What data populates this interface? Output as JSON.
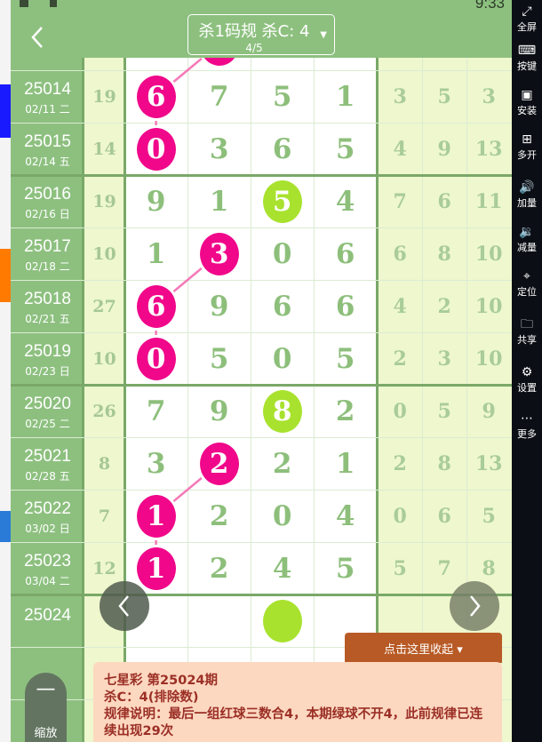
{
  "status": {
    "time": "9:33"
  },
  "header": {
    "title": "杀1码规 杀C: 4",
    "subtitle": "4/5",
    "back_icon": "chevron-left-icon",
    "dropdown_icon": "caret-down-icon"
  },
  "colors": {
    "header": "#8dc07f",
    "pink_ball": "#f0078a",
    "green_ball": "#a8e22e",
    "link_line": "#f57ab8",
    "collapse": "#b85a25",
    "panel": "#fdd8c0",
    "panel_text": "#9b2f26"
  },
  "partial_row": {
    "ball_col": 1,
    "ball_color": "pink"
  },
  "rows": [
    {
      "issue": "25014",
      "date": "02/11 二",
      "sum": "19",
      "nums": [
        "6",
        "7",
        "5",
        "1"
      ],
      "ball_col": 0,
      "ball_color": "pink",
      "tail": [
        "3",
        "5",
        "3"
      ]
    },
    {
      "issue": "25015",
      "date": "02/14 五",
      "sum": "14",
      "nums": [
        "0",
        "3",
        "6",
        "5"
      ],
      "ball_col": 0,
      "ball_color": "pink",
      "tail": [
        "4",
        "9",
        "13"
      ]
    },
    {
      "issue": "25016",
      "date": "02/16 日",
      "sum": "19",
      "nums": [
        "9",
        "1",
        "5",
        "4"
      ],
      "ball_col": 2,
      "ball_color": "green",
      "tail": [
        "7",
        "6",
        "11"
      ]
    },
    {
      "issue": "25017",
      "date": "02/18 二",
      "sum": "10",
      "nums": [
        "1",
        "3",
        "0",
        "6"
      ],
      "ball_col": 1,
      "ball_color": "pink",
      "tail": [
        "6",
        "8",
        "10"
      ]
    },
    {
      "issue": "25018",
      "date": "02/21 五",
      "sum": "27",
      "nums": [
        "6",
        "9",
        "6",
        "6"
      ],
      "ball_col": 0,
      "ball_color": "pink",
      "tail": [
        "4",
        "2",
        "10"
      ]
    },
    {
      "issue": "25019",
      "date": "02/23 日",
      "sum": "10",
      "nums": [
        "0",
        "5",
        "0",
        "5"
      ],
      "ball_col": 0,
      "ball_color": "pink",
      "tail": [
        "2",
        "3",
        "10"
      ]
    },
    {
      "issue": "25020",
      "date": "02/25 二",
      "sum": "26",
      "nums": [
        "7",
        "9",
        "8",
        "2"
      ],
      "ball_col": 2,
      "ball_color": "green",
      "tail": [
        "0",
        "5",
        "9"
      ]
    },
    {
      "issue": "25021",
      "date": "02/28 五",
      "sum": "8",
      "nums": [
        "3",
        "2",
        "2",
        "1"
      ],
      "ball_col": 1,
      "ball_color": "pink",
      "tail": [
        "2",
        "8",
        "13"
      ]
    },
    {
      "issue": "25022",
      "date": "03/02 日",
      "sum": "7",
      "nums": [
        "1",
        "2",
        "0",
        "4"
      ],
      "ball_col": 0,
      "ball_color": "pink",
      "tail": [
        "0",
        "6",
        "5"
      ]
    },
    {
      "issue": "25023",
      "date": "03/04 二",
      "sum": "12",
      "nums": [
        "1",
        "2",
        "4",
        "5"
      ],
      "ball_col": 0,
      "ball_color": "pink",
      "tail": [
        "5",
        "7",
        "8"
      ]
    },
    {
      "issue": "25024",
      "date": "",
      "sum": "",
      "nums": [
        "",
        "",
        "",
        ""
      ],
      "ball_col": 2,
      "ball_color": "green",
      "tail": [
        "",
        "",
        ""
      ]
    }
  ],
  "collapse_button": {
    "label": "点击这里收起 ▾"
  },
  "info": {
    "line1": "七星彩 第25024期",
    "line2": "杀C：4(排除数)",
    "line3": "规律说明：最后一组红球三数合4，本期绿球不开4，此前规律已连续出现29次"
  },
  "zoom_button": {
    "symbol": "—",
    "label": "缩放"
  },
  "nav": {
    "prev_icon": "chevron-left-icon",
    "next_icon": "chevron-right-icon"
  },
  "sidebar": [
    {
      "label": "全屏",
      "icon": "fullscreen-icon",
      "glyph": "⤢"
    },
    {
      "label": "按键",
      "icon": "keyboard-icon",
      "glyph": "⌨"
    },
    {
      "label": "安装",
      "icon": "apk-icon",
      "glyph": "▣"
    },
    {
      "label": "多开",
      "icon": "multi-window-icon",
      "glyph": "⊞"
    },
    {
      "label": "加量",
      "icon": "volume-up-icon",
      "glyph": "🔊"
    },
    {
      "label": "减量",
      "icon": "volume-down-icon",
      "glyph": "🔉"
    },
    {
      "label": "定位",
      "icon": "location-icon",
      "glyph": "⌖"
    },
    {
      "label": "共享",
      "icon": "folder-icon",
      "glyph": "🗀"
    },
    {
      "label": "设置",
      "icon": "gear-icon",
      "glyph": "⚙"
    },
    {
      "label": "更多",
      "icon": "more-icon",
      "glyph": "⋯"
    }
  ]
}
